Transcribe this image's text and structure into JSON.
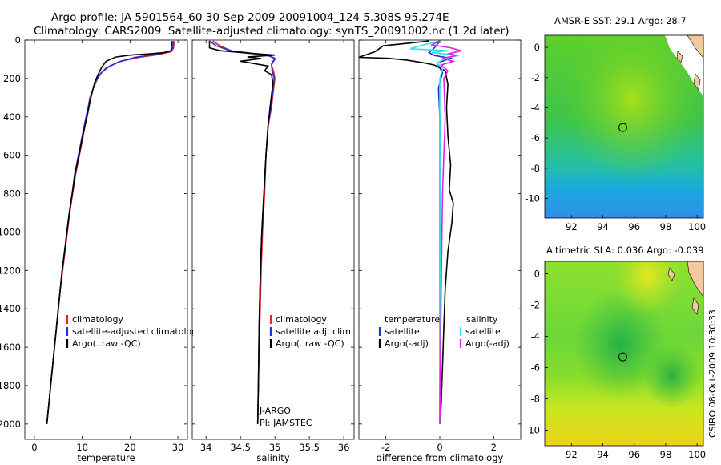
{
  "header": {
    "line1": "Argo profile: JA 5901564_60 30-Sep-2009 20091004_124 5.308S 95.274E",
    "line2": "Climatology: CARS2009. Satellite-adjusted climatology: synTS_20091002.nc (1.2d later)"
  },
  "stamp": "CSIRO 08-Oct-2009 10:30:33",
  "colors": {
    "climatology": "#e8251f",
    "satellite": "#1f2fe0",
    "argo": "#000000",
    "satellite_diff": "#2ee6e6",
    "argo_diff_salinity": "#e61ee6"
  },
  "chart_data": [
    {
      "type": "line",
      "name": "temperature-profile",
      "xlabel": "temperature",
      "ylabel": "",
      "xlim": [
        -2,
        32
      ],
      "ylim": [
        2080,
        0
      ],
      "xticks": [
        0,
        10,
        20,
        30
      ],
      "yticks": [
        0,
        200,
        400,
        600,
        800,
        1000,
        1200,
        1400,
        1600,
        1800,
        2000
      ],
      "legend": [
        "climatology",
        "satellite-adjusted climatology",
        "Argo(..raw -QC)"
      ],
      "series": [
        {
          "name": "climatology",
          "color_key": "climatology",
          "points": [
            [
              29.2,
              5
            ],
            [
              29.1,
              40
            ],
            [
              28.6,
              60
            ],
            [
              26,
              75
            ],
            [
              22,
              90
            ],
            [
              18,
              110
            ],
            [
              15.5,
              140
            ],
            [
              14,
              170
            ],
            [
              13.2,
              200
            ],
            [
              12.5,
              240
            ],
            [
              11.6,
              300
            ],
            [
              10.9,
              400
            ],
            [
              10.2,
              500
            ],
            [
              9.4,
              600
            ],
            [
              8.6,
              700
            ],
            [
              8.0,
              800
            ],
            [
              7.4,
              900
            ],
            [
              6.9,
              1000
            ],
            [
              6.4,
              1100
            ],
            [
              5.9,
              1200
            ],
            [
              5.4,
              1300
            ],
            [
              5.0,
              1400
            ],
            [
              4.6,
              1500
            ],
            [
              4.2,
              1600
            ],
            [
              3.8,
              1700
            ],
            [
              3.4,
              1800
            ],
            [
              3.0,
              1900
            ],
            [
              2.6,
              2000
            ]
          ]
        },
        {
          "name": "satellite-adjusted climatology",
          "color_key": "satellite",
          "points": [
            [
              29.0,
              5
            ],
            [
              28.9,
              45
            ],
            [
              28.2,
              60
            ],
            [
              25,
              75
            ],
            [
              21,
              90
            ],
            [
              17.5,
              115
            ],
            [
              15,
              145
            ],
            [
              13.8,
              175
            ],
            [
              13.0,
              205
            ],
            [
              12.3,
              250
            ],
            [
              11.5,
              320
            ],
            [
              10.8,
              400
            ],
            [
              10.0,
              500
            ],
            [
              9.2,
              600
            ],
            [
              8.4,
              700
            ],
            [
              7.9,
              800
            ],
            [
              7.3,
              900
            ],
            [
              6.8,
              1000
            ],
            [
              6.3,
              1100
            ],
            [
              5.8,
              1200
            ],
            [
              5.4,
              1300
            ],
            [
              5.0,
              1400
            ],
            [
              4.6,
              1500
            ],
            [
              4.2,
              1600
            ],
            [
              3.8,
              1700
            ],
            [
              3.4,
              1800
            ],
            [
              3.0,
              1900
            ],
            [
              2.6,
              2000
            ]
          ]
        },
        {
          "name": "Argo(..raw -QC)",
          "color_key": "argo",
          "points": [
            [
              28.7,
              5
            ],
            [
              28.6,
              55
            ],
            [
              27,
              65
            ],
            [
              24,
              72
            ],
            [
              20,
              78
            ],
            [
              17,
              88
            ],
            [
              15,
              110
            ],
            [
              14,
              145
            ],
            [
              13.2,
              185
            ],
            [
              12.6,
              220
            ],
            [
              11.8,
              300
            ],
            [
              11.0,
              400
            ],
            [
              10.1,
              500
            ],
            [
              9.3,
              600
            ],
            [
              8.5,
              700
            ],
            [
              7.9,
              800
            ],
            [
              7.3,
              900
            ],
            [
              6.8,
              1000
            ],
            [
              6.3,
              1100
            ],
            [
              5.8,
              1200
            ],
            [
              5.4,
              1300
            ],
            [
              5.0,
              1400
            ],
            [
              4.6,
              1500
            ],
            [
              4.2,
              1600
            ],
            [
              3.8,
              1700
            ],
            [
              3.4,
              1800
            ],
            [
              3.0,
              1900
            ],
            [
              2.6,
              2000
            ]
          ]
        }
      ]
    },
    {
      "type": "line",
      "name": "salinity-profile",
      "xlabel": "salinity",
      "ylabel": "",
      "xlim": [
        33.8,
        36.15
      ],
      "ylim": [
        2080,
        0
      ],
      "xticks": [
        34,
        34.5,
        35,
        35.5,
        36
      ],
      "legend": [
        "climatology",
        "satellite adj. clim.",
        "Argo(..raw -QC)"
      ],
      "annotation": [
        "J-ARGO",
        "PI: JAMSTEC"
      ],
      "series": [
        {
          "name": "climatology",
          "color_key": "climatology",
          "points": [
            [
              34.1,
              5
            ],
            [
              34.2,
              30
            ],
            [
              34.4,
              60
            ],
            [
              34.8,
              75
            ],
            [
              34.95,
              85
            ],
            [
              35.0,
              100
            ],
            [
              34.95,
              130
            ],
            [
              34.98,
              160
            ],
            [
              35.0,
              200
            ],
            [
              34.98,
              260
            ],
            [
              34.95,
              350
            ],
            [
              34.9,
              450
            ],
            [
              34.87,
              600
            ],
            [
              34.85,
              800
            ],
            [
              34.82,
              1000
            ],
            [
              34.8,
              1200
            ],
            [
              34.78,
              1500
            ],
            [
              34.76,
              1800
            ],
            [
              34.75,
              2000
            ]
          ]
        },
        {
          "name": "satellite adj. clim.",
          "color_key": "satellite",
          "points": [
            [
              34.05,
              5
            ],
            [
              34.15,
              30
            ],
            [
              34.35,
              55
            ],
            [
              34.7,
              70
            ],
            [
              34.9,
              80
            ],
            [
              35.0,
              95
            ],
            [
              34.95,
              125
            ],
            [
              34.96,
              160
            ],
            [
              34.99,
              200
            ],
            [
              34.97,
              260
            ],
            [
              34.94,
              350
            ],
            [
              34.9,
              450
            ],
            [
              34.87,
              600
            ],
            [
              34.84,
              800
            ],
            [
              34.81,
              1000
            ],
            [
              34.79,
              1200
            ],
            [
              34.77,
              1500
            ],
            [
              34.76,
              1800
            ],
            [
              34.75,
              2000
            ]
          ]
        },
        {
          "name": "Argo(..raw -QC)",
          "color_key": "argo",
          "points": [
            [
              34.05,
              5
            ],
            [
              34.05,
              40
            ],
            [
              34.2,
              55
            ],
            [
              34.7,
              70
            ],
            [
              35.0,
              78
            ],
            [
              34.6,
              88
            ],
            [
              34.8,
              96
            ],
            [
              34.5,
              110
            ],
            [
              34.9,
              135
            ],
            [
              34.85,
              160
            ],
            [
              34.95,
              180
            ],
            [
              34.97,
              220
            ],
            [
              34.96,
              260
            ],
            [
              34.93,
              350
            ],
            [
              34.9,
              450
            ],
            [
              34.87,
              600
            ],
            [
              34.84,
              800
            ],
            [
              34.81,
              1000
            ],
            [
              34.79,
              1200
            ],
            [
              34.77,
              1500
            ],
            [
              34.76,
              1800
            ],
            [
              34.75,
              2000
            ]
          ]
        }
      ]
    },
    {
      "type": "line",
      "name": "difference-profile",
      "xlabel": "difference from climatology",
      "ylabel": "",
      "xlim": [
        -3,
        3
      ],
      "ylim": [
        2080,
        0
      ],
      "xticks": [
        -2,
        0,
        2
      ],
      "legend_left": [
        "temperature",
        "satellite",
        "Argo(-adj)"
      ],
      "legend_right": [
        "salinity",
        "satellite",
        "Argo(-adj)"
      ],
      "series": [
        {
          "name": "temperature satellite",
          "color_key": "satellite",
          "points": [
            [
              0,
              5
            ],
            [
              -0.2,
              40
            ],
            [
              -0.4,
              65
            ],
            [
              -0.2,
              80
            ],
            [
              0.4,
              95
            ],
            [
              -0.1,
              120
            ],
            [
              0.1,
              170
            ],
            [
              -0.05,
              250
            ],
            [
              0,
              400
            ],
            [
              0,
              1000
            ],
            [
              0,
              2000
            ]
          ]
        },
        {
          "name": "temperature Argo(-adj)",
          "color_key": "argo",
          "points": [
            [
              -0.4,
              5
            ],
            [
              -2.1,
              30
            ],
            [
              -2.4,
              60
            ],
            [
              -3.0,
              90
            ],
            [
              -1.9,
              95
            ],
            [
              -1.2,
              105
            ],
            [
              -0.6,
              118
            ],
            [
              -0.2,
              130
            ],
            [
              0.2,
              160
            ],
            [
              0.3,
              230
            ],
            [
              0.25,
              350
            ],
            [
              0.3,
              500
            ],
            [
              0.4,
              650
            ],
            [
              0.35,
              780
            ],
            [
              0.5,
              850
            ],
            [
              0.45,
              950
            ],
            [
              0.3,
              1100
            ],
            [
              0.2,
              1300
            ],
            [
              0.15,
              1500
            ],
            [
              0.1,
              1700
            ],
            [
              0.05,
              1900
            ],
            [
              0,
              2000
            ]
          ]
        },
        {
          "name": "salinity satellite",
          "color_key": "satellite_diff",
          "points": [
            [
              0,
              5
            ],
            [
              -0.6,
              25
            ],
            [
              -1.1,
              45
            ],
            [
              0.3,
              55
            ],
            [
              -0.3,
              65
            ],
            [
              0.7,
              80
            ],
            [
              0.2,
              95
            ],
            [
              -0.1,
              120
            ],
            [
              0.1,
              150
            ],
            [
              0,
              200
            ],
            [
              0,
              300
            ],
            [
              0,
              1000
            ],
            [
              0,
              2000
            ]
          ]
        },
        {
          "name": "salinity Argo(-adj)",
          "color_key": "argo_diff_salinity",
          "points": [
            [
              0,
              5
            ],
            [
              -0.3,
              25
            ],
            [
              0.4,
              40
            ],
            [
              0.8,
              55
            ],
            [
              0.35,
              70
            ],
            [
              0.6,
              80
            ],
            [
              0.1,
              95
            ],
            [
              0.5,
              110
            ],
            [
              0.05,
              130
            ],
            [
              0.3,
              160
            ],
            [
              0.15,
              200
            ],
            [
              0.2,
              400
            ],
            [
              0.15,
              600
            ],
            [
              0.1,
              800
            ],
            [
              0.08,
              1000
            ],
            [
              0.05,
              1300
            ],
            [
              0.03,
              1600
            ],
            [
              0,
              2000
            ]
          ]
        }
      ]
    },
    {
      "type": "heatmap",
      "name": "amsre-sst-map",
      "title": "AMSR-E SST: 29.1 Argo: 28.7",
      "xticks": [
        92,
        94,
        96,
        98,
        100
      ],
      "yticks": [
        0,
        -2,
        -4,
        -6,
        -8,
        -10
      ],
      "xlim": [
        90.3,
        100.4
      ],
      "ylim": [
        -11.3,
        0.8
      ],
      "marker": [
        95.274,
        -5.308
      ]
    },
    {
      "type": "heatmap",
      "name": "altimetric-sla-map",
      "title": "Altimetric SLA: 0.036 Argo: -0.039",
      "xticks": [
        92,
        94,
        96,
        98,
        100
      ],
      "yticks": [
        0,
        -2,
        -4,
        -6,
        -8,
        -10
      ],
      "xlim": [
        90.3,
        100.4
      ],
      "ylim": [
        -11.0,
        0.8
      ],
      "marker": [
        95.274,
        -5.308
      ]
    }
  ]
}
